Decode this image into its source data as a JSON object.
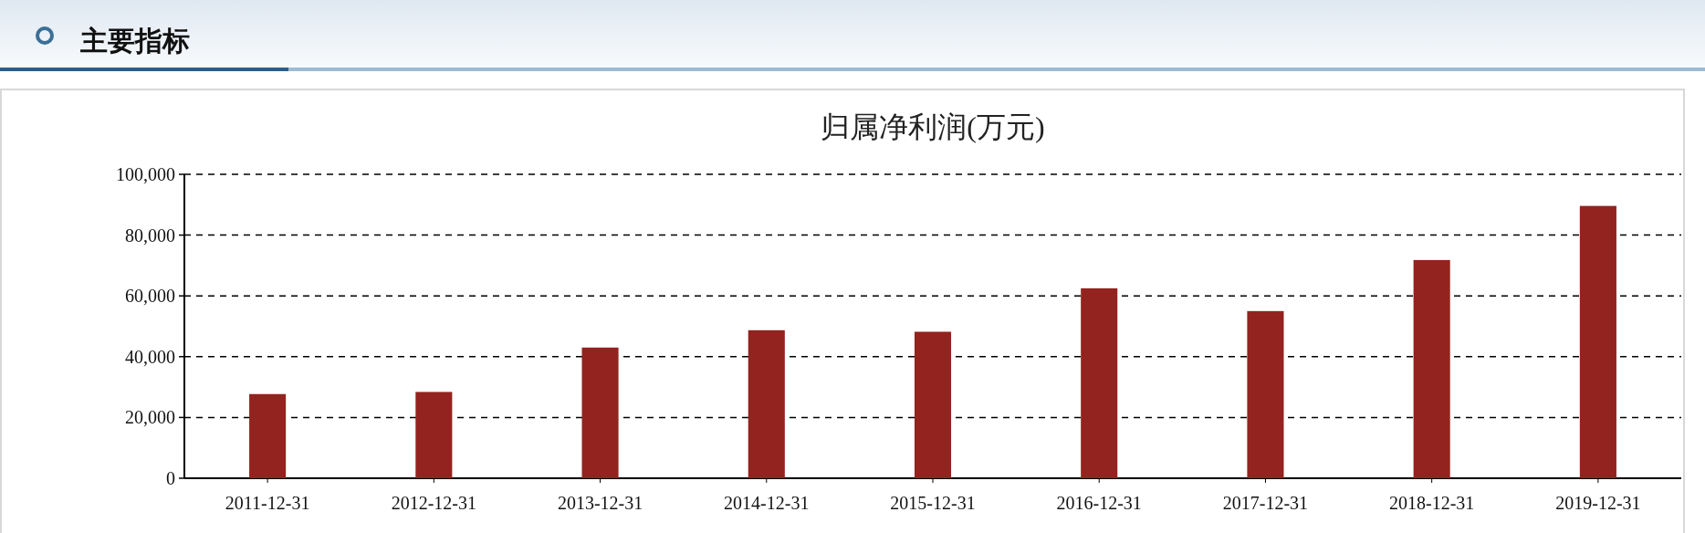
{
  "chart_data": {
    "type": "bar",
    "title": "归属净利润(万元)",
    "annotations": [
      "主要指标"
    ],
    "categories": [
      "2011-12-31",
      "2012-12-31",
      "2013-12-31",
      "2014-12-31",
      "2015-12-31",
      "2016-12-31",
      "2017-12-31",
      "2018-12-31",
      "2019-12-31"
    ],
    "values": [
      27700,
      28400,
      43000,
      48700,
      48200,
      62500,
      55000,
      71800,
      89600
    ],
    "color": "#93231e",
    "ylim": [
      0,
      100000
    ],
    "yticks": [
      {
        "value": 0,
        "label": "0"
      },
      {
        "value": 20000,
        "label": "20,000"
      },
      {
        "value": 40000,
        "label": "40,000"
      },
      {
        "value": 60000,
        "label": "60,000"
      },
      {
        "value": 80000,
        "label": "80,000"
      },
      {
        "value": 100000,
        "label": "100,000"
      }
    ],
    "grid": "y"
  }
}
